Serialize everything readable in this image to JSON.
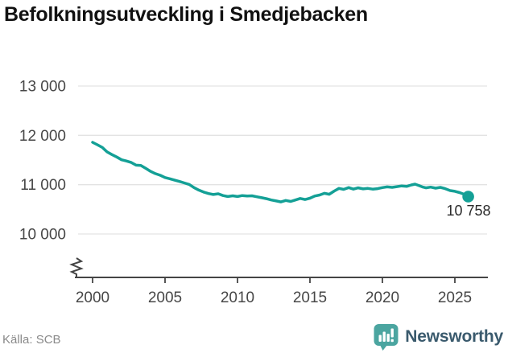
{
  "header": {
    "title": "Befolkningsutveckling i Smedjebacken"
  },
  "chart": {
    "y_tick_labels": [
      "13 000",
      "12 000",
      "11 000",
      "10 000"
    ],
    "x_tick_labels": [
      "2000",
      "2005",
      "2010",
      "2015",
      "2020",
      "2025"
    ],
    "latest_label": "10 758"
  },
  "footer": {
    "source": "Källa: SCB",
    "brand": "Newsworthy"
  },
  "colors": {
    "line": "#14a096",
    "logo": "#4ba5a0",
    "brand_text": "#3a5a6d",
    "grid": "#e3e3e3",
    "axis": "#454545"
  },
  "chart_data": {
    "type": "line",
    "title": "Befolkningsutveckling i Smedjebacken",
    "xlabel": "",
    "ylabel": "",
    "xlim": [
      1999.5,
      2026.5
    ],
    "ylim": [
      10000,
      13000
    ],
    "axis_break_at_bottom": true,
    "grid": "horizontal",
    "y_ticks": [
      10000,
      11000,
      12000,
      13000
    ],
    "x_ticks": [
      2000,
      2005,
      2010,
      2015,
      2020,
      2025
    ],
    "latest_value": 10758,
    "series": [
      {
        "name": "Befolkning",
        "color": "#14a096",
        "points": [
          [
            2000.0,
            11859
          ],
          [
            2000.33,
            11810
          ],
          [
            2000.67,
            11755
          ],
          [
            2001.0,
            11665
          ],
          [
            2001.33,
            11610
          ],
          [
            2001.67,
            11560
          ],
          [
            2002.0,
            11505
          ],
          [
            2002.33,
            11480
          ],
          [
            2002.67,
            11450
          ],
          [
            2003.0,
            11395
          ],
          [
            2003.33,
            11390
          ],
          [
            2003.67,
            11330
          ],
          [
            2004.0,
            11270
          ],
          [
            2004.33,
            11225
          ],
          [
            2004.67,
            11190
          ],
          [
            2005.0,
            11145
          ],
          [
            2005.33,
            11120
          ],
          [
            2005.67,
            11090
          ],
          [
            2006.0,
            11065
          ],
          [
            2006.33,
            11035
          ],
          [
            2006.67,
            11005
          ],
          [
            2007.0,
            10940
          ],
          [
            2007.33,
            10890
          ],
          [
            2007.67,
            10850
          ],
          [
            2008.0,
            10820
          ],
          [
            2008.33,
            10800
          ],
          [
            2008.67,
            10815
          ],
          [
            2009.0,
            10780
          ],
          [
            2009.33,
            10760
          ],
          [
            2009.67,
            10775
          ],
          [
            2010.0,
            10760
          ],
          [
            2010.33,
            10780
          ],
          [
            2010.67,
            10770
          ],
          [
            2011.0,
            10775
          ],
          [
            2011.33,
            10755
          ],
          [
            2011.67,
            10735
          ],
          [
            2012.0,
            10715
          ],
          [
            2012.33,
            10690
          ],
          [
            2012.67,
            10670
          ],
          [
            2013.0,
            10650
          ],
          [
            2013.33,
            10680
          ],
          [
            2013.67,
            10660
          ],
          [
            2014.0,
            10690
          ],
          [
            2014.33,
            10720
          ],
          [
            2014.67,
            10700
          ],
          [
            2015.0,
            10725
          ],
          [
            2015.33,
            10770
          ],
          [
            2015.67,
            10790
          ],
          [
            2016.0,
            10825
          ],
          [
            2016.33,
            10805
          ],
          [
            2016.67,
            10870
          ],
          [
            2017.0,
            10925
          ],
          [
            2017.33,
            10905
          ],
          [
            2017.67,
            10940
          ],
          [
            2018.0,
            10910
          ],
          [
            2018.33,
            10935
          ],
          [
            2018.67,
            10915
          ],
          [
            2019.0,
            10925
          ],
          [
            2019.33,
            10910
          ],
          [
            2019.67,
            10920
          ],
          [
            2020.0,
            10940
          ],
          [
            2020.33,
            10955
          ],
          [
            2020.67,
            10945
          ],
          [
            2021.0,
            10960
          ],
          [
            2021.33,
            10975
          ],
          [
            2021.67,
            10965
          ],
          [
            2022.0,
            10995
          ],
          [
            2022.25,
            11010
          ],
          [
            2022.5,
            10985
          ],
          [
            2022.75,
            10955
          ],
          [
            2023.0,
            10935
          ],
          [
            2023.33,
            10950
          ],
          [
            2023.67,
            10930
          ],
          [
            2024.0,
            10945
          ],
          [
            2024.33,
            10920
          ],
          [
            2024.67,
            10880
          ],
          [
            2025.0,
            10865
          ],
          [
            2025.33,
            10840
          ],
          [
            2025.67,
            10800
          ],
          [
            2025.92,
            10758
          ]
        ]
      }
    ]
  }
}
